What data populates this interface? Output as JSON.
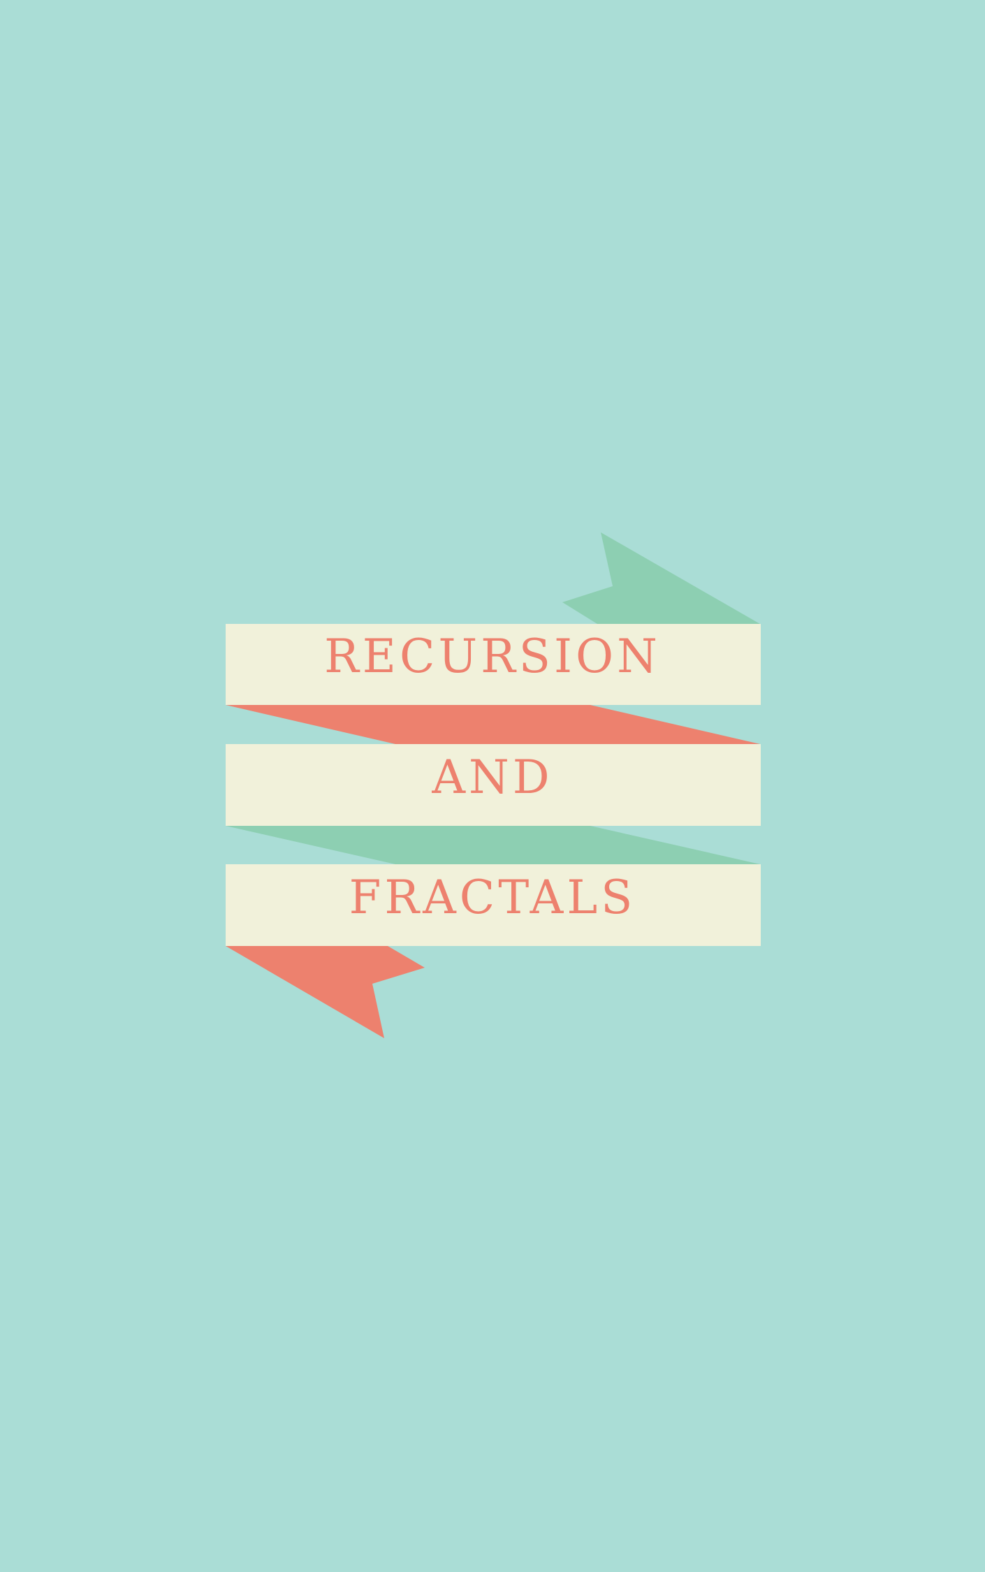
{
  "cover": {
    "lines": [
      "RECURSION",
      "AND",
      "FRACTALS"
    ]
  },
  "colors": {
    "background": "#AADDD6",
    "banner": "#F1F1DA",
    "text": "#ED816E",
    "coral": "#ED816E",
    "green": "#8DCFB2"
  }
}
